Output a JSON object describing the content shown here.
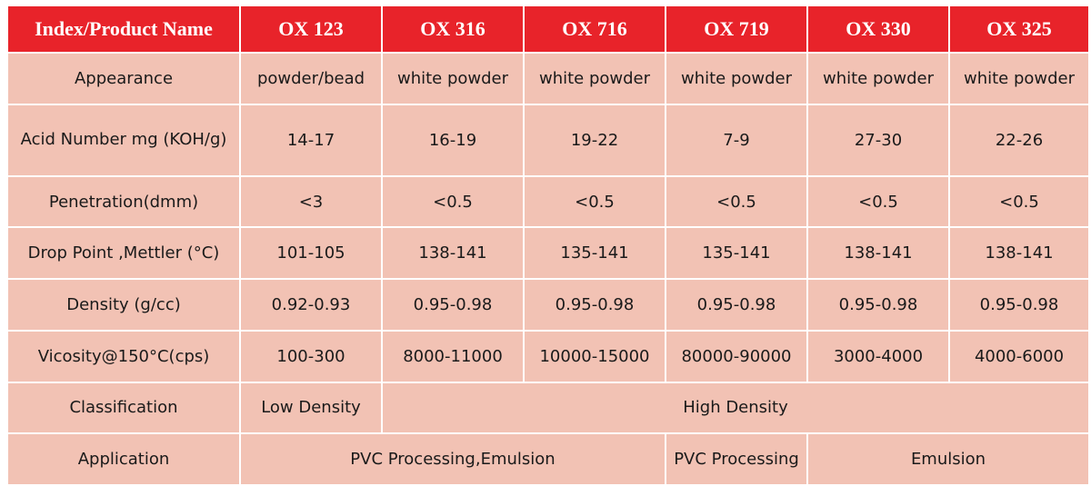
{
  "table": {
    "header": {
      "index": "Index/Product Name",
      "products": [
        "OX 123",
        "OX 316",
        "OX 716",
        "OX 719",
        "OX 330",
        "OX 325"
      ]
    },
    "rows": {
      "appearance": {
        "label": "Appearance",
        "values": [
          "powder/bead",
          "white powder",
          "white powder",
          "white powder",
          "white powder",
          "white powder"
        ]
      },
      "acid_number": {
        "label": "Acid Number mg (KOH/g)",
        "values": [
          "14-17",
          "16-19",
          "19-22",
          "7-9",
          "27-30",
          "22-26"
        ]
      },
      "penetration": {
        "label": "Penetration(dmm)",
        "values": [
          "<3",
          "<0.5",
          "<0.5",
          "<0.5",
          "<0.5",
          "<0.5"
        ]
      },
      "drop_point": {
        "label": "Drop Point ,Mettler (°C)",
        "values": [
          "101-105",
          "138-141",
          "135-141",
          "135-141",
          "138-141",
          "138-141"
        ]
      },
      "density": {
        "label": "Density (g/cc)",
        "values": [
          "0.92-0.93",
          "0.95-0.98",
          "0.95-0.98",
          "0.95-0.98",
          "0.95-0.98",
          "0.95-0.98"
        ]
      },
      "viscosity": {
        "label": "Vicosity@150°C(cps)",
        "values": [
          "100-300",
          "8000-11000",
          "10000-15000",
          "80000-90000",
          "3000-4000",
          "4000-6000"
        ]
      },
      "classification": {
        "label": "Classification",
        "low": "Low Density",
        "high": "High Density"
      },
      "application": {
        "label": "Application",
        "pvc_emulsion": "PVC Processing,Emulsion",
        "pvc": "PVC Processing",
        "emulsion": "Emulsion"
      }
    },
    "colors": {
      "header_bg": "#e8232a",
      "header_text": "#ffffff",
      "cell_bg": "#f2c2b4",
      "cell_text": "#1a1a1a",
      "grid": "#ffffff"
    }
  }
}
